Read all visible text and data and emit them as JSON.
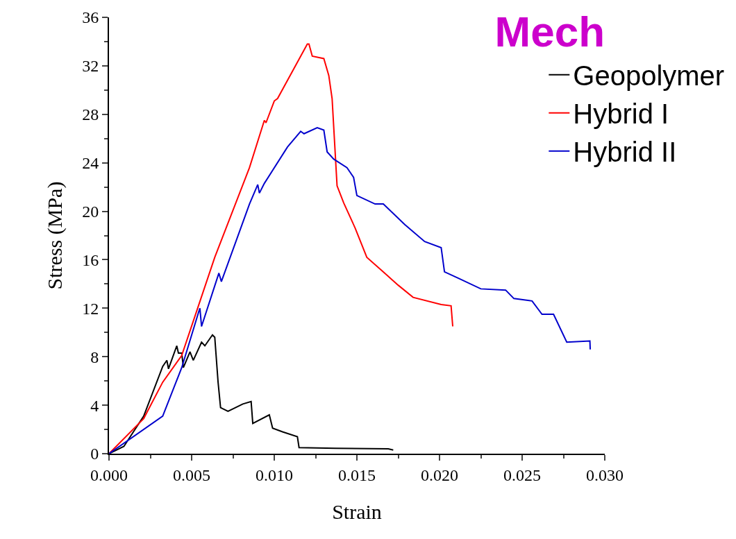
{
  "chart_data": {
    "type": "line",
    "title": "Mech",
    "xlabel": "Strain",
    "ylabel": "Stress (MPa)",
    "xlim": [
      0,
      0.03
    ],
    "xticks": [
      {
        "value": 0,
        "label": "0.000"
      },
      {
        "value": 0.005,
        "label": "0.005"
      },
      {
        "value": 0.01,
        "label": "0.010"
      },
      {
        "value": 0.015,
        "label": "0.015"
      },
      {
        "value": 0.02,
        "label": "0.020"
      },
      {
        "value": 0.025,
        "label": "0.025"
      },
      {
        "value": 0.03,
        "label": "0.030"
      }
    ],
    "ylim": [
      0,
      36
    ],
    "yticks": [
      0,
      4,
      8,
      12,
      16,
      20,
      24,
      28,
      32,
      36
    ],
    "grid": false,
    "legend": "top right",
    "marker": "none",
    "line_style": "solid",
    "series": [
      {
        "name": "Geopolymer",
        "color": "#000000",
        "x": [
          0,
          0.0009,
          0.0021,
          0.00325,
          0.0035,
          0.0036,
          0.0041,
          0.0042,
          0.0044,
          0.0045,
          0.0049,
          0.0051,
          0.0056,
          0.0058,
          0.00626,
          0.0064,
          0.0066,
          0.00675,
          0.0072,
          0.0081,
          0.0086,
          0.0087,
          0.0097,
          0.0099,
          0.0105,
          0.0114,
          0.0115,
          0.0137,
          0.0169,
          0.0172
        ],
        "values": [
          0,
          0.6,
          3.1,
          7.2,
          7.7,
          7.0,
          8.9,
          8.3,
          8.3,
          7.1,
          8.4,
          7.7,
          9.2,
          8.9,
          9.8,
          9.6,
          5.9,
          3.8,
          3.5,
          4.1,
          4.3,
          2.5,
          3.2,
          2.1,
          1.8,
          1.4,
          0.5,
          0.45,
          0.4,
          0.3
        ]
      },
      {
        "name": "Hybrid I",
        "color": "#ff0000",
        "x": [
          0,
          0.0021,
          0.00325,
          0.0044,
          0.0064,
          0.0085,
          0.0094,
          0.0095,
          0.01,
          0.0102,
          0.012,
          0.0121,
          0.0123,
          0.013,
          0.0133,
          0.0135,
          0.0138,
          0.0142,
          0.0149,
          0.0156,
          0.0166,
          0.0175,
          0.0184,
          0.0201,
          0.0207,
          0.0208
        ],
        "values": [
          0,
          2.9,
          5.9,
          8.1,
          16.2,
          23.6,
          27.5,
          27.3,
          29.1,
          29.3,
          33.8,
          33.8,
          32.8,
          32.6,
          31.2,
          29.3,
          22.1,
          20.7,
          18.6,
          16.2,
          15.0,
          13.9,
          12.9,
          12.3,
          12.2,
          10.5
        ]
      },
      {
        "name": "Hybrid II",
        "color": "#0000cc",
        "x": [
          0,
          0.00325,
          0.0044,
          0.00545,
          0.0055,
          0.0056,
          0.00665,
          0.0068,
          0.0085,
          0.009,
          0.0091,
          0.0094,
          0.0108,
          0.0116,
          0.0118,
          0.0126,
          0.013,
          0.0132,
          0.0136,
          0.0144,
          0.0148,
          0.015,
          0.0161,
          0.0166,
          0.0179,
          0.0191,
          0.0201,
          0.0203,
          0.0211,
          0.0225,
          0.024,
          0.0245,
          0.0256,
          0.0262,
          0.0269,
          0.0277,
          0.0291,
          0.02912
        ],
        "values": [
          0,
          3.1,
          7.1,
          11.8,
          12.0,
          10.5,
          14.9,
          14.2,
          20.6,
          22.2,
          21.5,
          22.3,
          25.3,
          26.6,
          26.4,
          26.9,
          26.7,
          24.9,
          24.3,
          23.6,
          22.8,
          21.3,
          20.6,
          20.6,
          18.9,
          17.5,
          17.0,
          15.0,
          14.5,
          13.6,
          13.5,
          12.8,
          12.6,
          11.5,
          11.5,
          9.2,
          9.3,
          8.6
        ]
      }
    ]
  }
}
